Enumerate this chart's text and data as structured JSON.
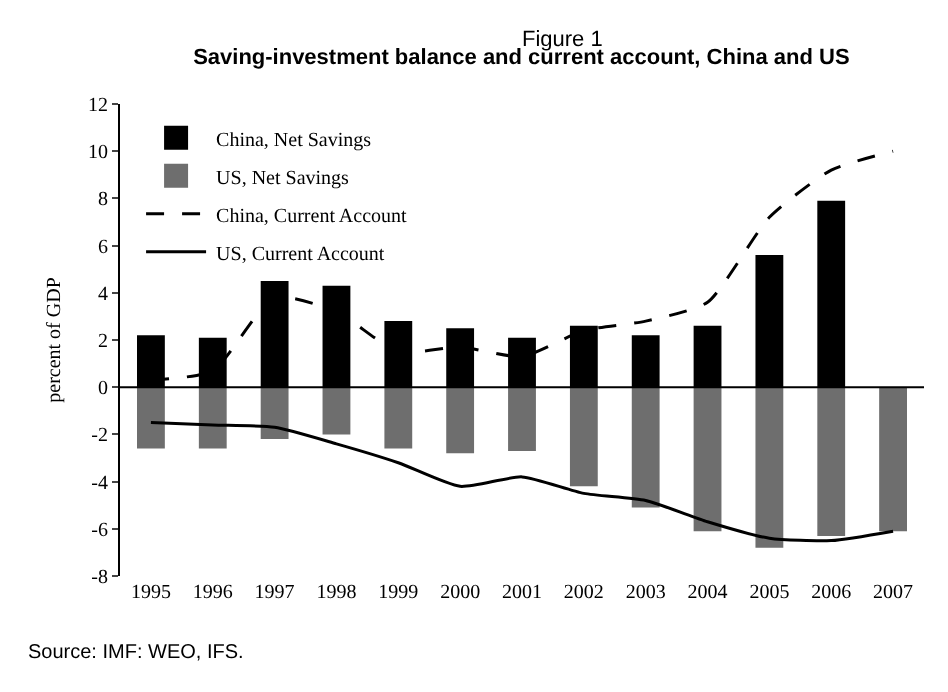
{
  "chart_data": {
    "type": "bar",
    "subtitle": "Figure 1",
    "title": "Saving-investment balance and current account, China and US",
    "ylabel": "percent of GDP",
    "categories": [
      "1995",
      "1996",
      "1997",
      "1998",
      "1999",
      "2000",
      "2001",
      "2002",
      "2003",
      "2004",
      "2005",
      "2006",
      "2007"
    ],
    "series": [
      {
        "name": "China, Net Savings",
        "color": "#000000",
        "values": [
          2.2,
          2.1,
          4.5,
          4.3,
          2.8,
          2.5,
          2.1,
          2.6,
          2.2,
          2.6,
          5.6,
          7.9,
          null
        ]
      },
      {
        "name": "US, Net Savings",
        "color": "#6e6e6e",
        "values": [
          -2.6,
          -2.6,
          -2.2,
          -2.0,
          -2.6,
          -2.8,
          -2.7,
          -4.2,
          -5.1,
          -6.1,
          -6.8,
          -6.3,
          -6.1
        ]
      },
      {
        "name": "China, Current Account",
        "type": "line",
        "color": "#000000",
        "line_style": "dashed",
        "values": [
          0.3,
          0.7,
          3.8,
          3.2,
          1.5,
          1.7,
          1.3,
          2.4,
          2.8,
          3.6,
          7.2,
          9.2,
          10.0
        ]
      },
      {
        "name": "US, Current Account",
        "type": "line",
        "color": "#000000",
        "line_style": "solid",
        "values": [
          -1.5,
          -1.6,
          -1.7,
          -2.4,
          -3.2,
          -4.2,
          -3.8,
          -4.5,
          -4.8,
          -5.7,
          -6.4,
          -6.5,
          -6.1
        ]
      }
    ],
    "ylim": [
      -8,
      12
    ],
    "yticks": [
      -8,
      -6,
      -4,
      -2,
      0,
      2,
      4,
      6,
      8,
      10,
      12
    ],
    "stacked": true,
    "ref_lines": [
      {
        "axis": "y",
        "value": 0,
        "color": "#000000"
      }
    ],
    "legend": "top left",
    "marker": "none",
    "annotations": [
      "Source: IMF: WEO, IFS."
    ]
  }
}
